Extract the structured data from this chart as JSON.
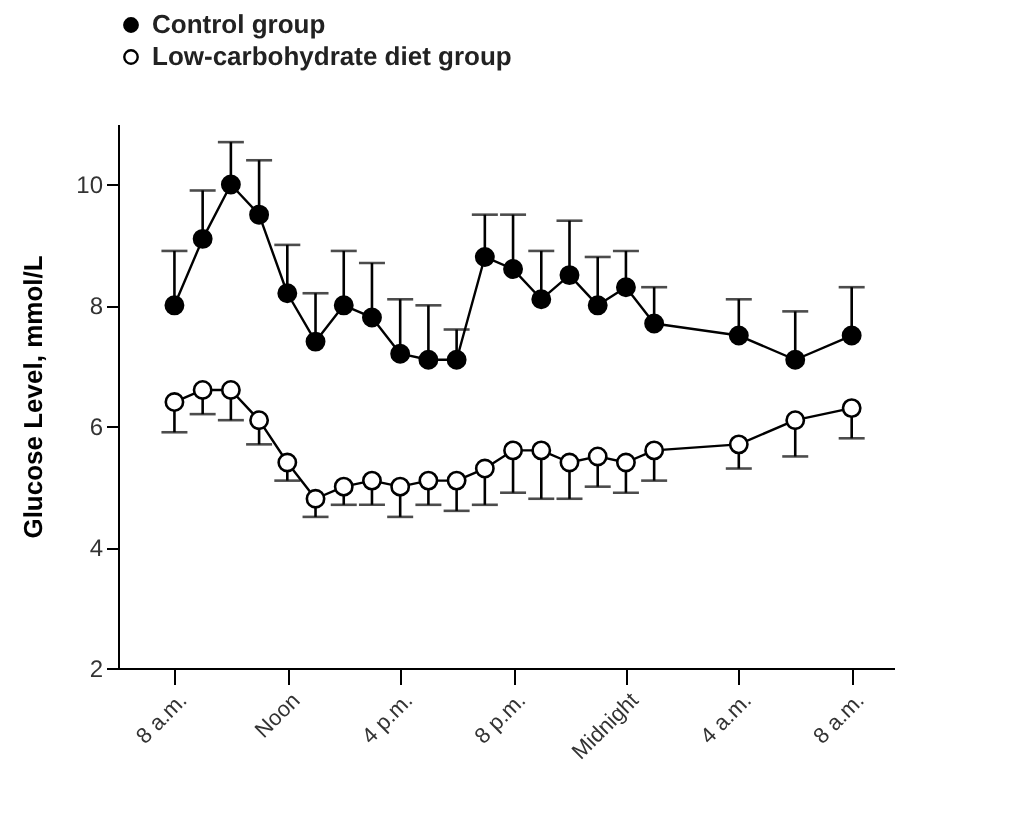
{
  "chart_data": {
    "type": "line",
    "ylabel": "Glucose Level, mmol/L",
    "categories": [
      "8 a.m.",
      null,
      null,
      null,
      "Noon",
      null,
      null,
      null,
      "4 p.m.",
      null,
      null,
      null,
      "8 p.m.",
      null,
      null,
      null,
      "Midnight",
      null,
      null,
      null,
      "4 a.m.",
      null,
      null,
      null,
      "8 a.m."
    ],
    "series": [
      {
        "name": "Control group",
        "color": "#000000",
        "values": [
          8.0,
          9.1,
          10.0,
          9.5,
          8.2,
          7.4,
          8.0,
          7.8,
          7.2,
          7.1,
          7.1,
          8.8,
          8.6,
          8.1,
          8.5,
          8.0,
          8.3,
          7.7,
          null,
          null,
          7.5,
          null,
          7.1,
          null,
          7.5
        ],
        "errors": [
          [
            8.0,
            8.9
          ],
          [
            9.1,
            9.9
          ],
          [
            10.0,
            10.7
          ],
          [
            9.5,
            10.4
          ],
          [
            8.2,
            9.0
          ],
          [
            7.4,
            8.2
          ],
          [
            8.0,
            8.9
          ],
          [
            7.8,
            8.7
          ],
          [
            7.2,
            8.1
          ],
          [
            7.1,
            8.0
          ],
          [
            7.1,
            7.6
          ],
          [
            8.8,
            9.5
          ],
          [
            8.6,
            9.5
          ],
          [
            8.1,
            8.9
          ],
          [
            8.5,
            9.4
          ],
          [
            8.0,
            8.8
          ],
          [
            8.3,
            8.9
          ],
          [
            7.7,
            8.3
          ],
          null,
          null,
          [
            7.5,
            8.1
          ],
          null,
          [
            7.1,
            7.9
          ],
          null,
          [
            7.5,
            8.3
          ]
        ]
      },
      {
        "name": "Low-carbohydrate diet group",
        "color": "#ffffff",
        "values": [
          6.4,
          6.6,
          6.6,
          6.1,
          5.4,
          4.8,
          5.0,
          5.1,
          5.0,
          5.1,
          5.1,
          5.3,
          5.6,
          5.6,
          5.4,
          5.5,
          5.4,
          5.6,
          null,
          null,
          5.7,
          null,
          6.1,
          null,
          6.3
        ],
        "errors": [
          [
            5.9,
            6.4
          ],
          [
            6.2,
            6.6
          ],
          [
            6.1,
            6.6
          ],
          [
            5.7,
            6.1
          ],
          [
            5.1,
            5.4
          ],
          [
            4.5,
            4.8
          ],
          [
            4.7,
            5.0
          ],
          [
            4.7,
            5.1
          ],
          [
            4.5,
            5.0
          ],
          [
            4.7,
            5.1
          ],
          [
            4.6,
            5.1
          ],
          [
            4.7,
            5.3
          ],
          [
            4.9,
            5.6
          ],
          [
            4.8,
            5.6
          ],
          [
            4.8,
            5.4
          ],
          [
            5.0,
            5.5
          ],
          [
            4.9,
            5.4
          ],
          [
            5.1,
            5.6
          ],
          null,
          null,
          [
            5.3,
            5.7
          ],
          null,
          [
            5.5,
            6.1
          ],
          null,
          [
            5.8,
            6.3
          ]
        ]
      }
    ],
    "ylim": [
      2,
      11
    ],
    "yticks": [
      2,
      4,
      6,
      8,
      10
    ],
    "grid": false,
    "legend": "top",
    "marker": "circle",
    "line_style": "solid"
  }
}
